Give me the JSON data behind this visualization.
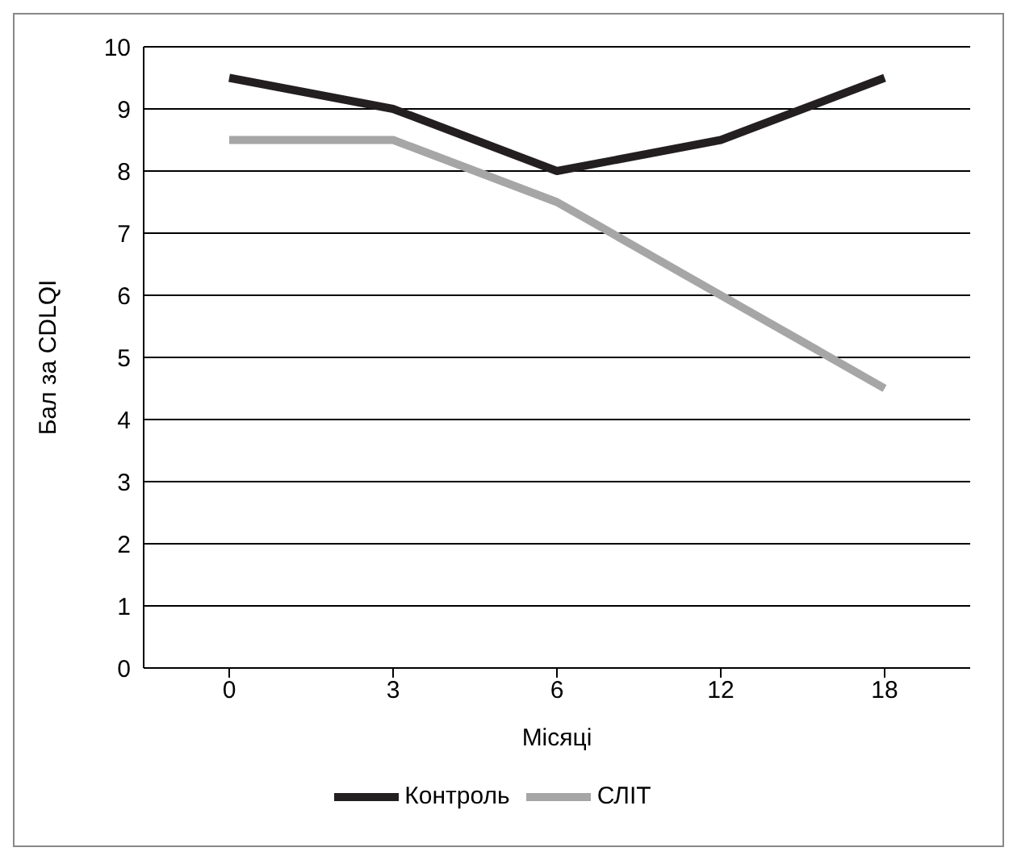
{
  "chart_data": {
    "type": "line",
    "xlabel": "Місяці",
    "ylabel": "Бал за CDLQI",
    "categories": [
      "0",
      "3",
      "6",
      "12",
      "18"
    ],
    "series": [
      {
        "name": "СЛІТ",
        "color": "#a6a6a6",
        "values": [
          8.5,
          8.5,
          7.5,
          6,
          4.5
        ]
      },
      {
        "name": "Контроль",
        "color": "#231f20",
        "values": [
          9.5,
          9,
          8,
          8.5,
          9.5
        ]
      }
    ],
    "ylim": [
      0,
      10
    ],
    "yticks": [
      0,
      1,
      2,
      3,
      4,
      5,
      6,
      7,
      8,
      9,
      10
    ],
    "grid": "y",
    "legend": "bottom",
    "marker": "none",
    "line_style": "solid"
  }
}
